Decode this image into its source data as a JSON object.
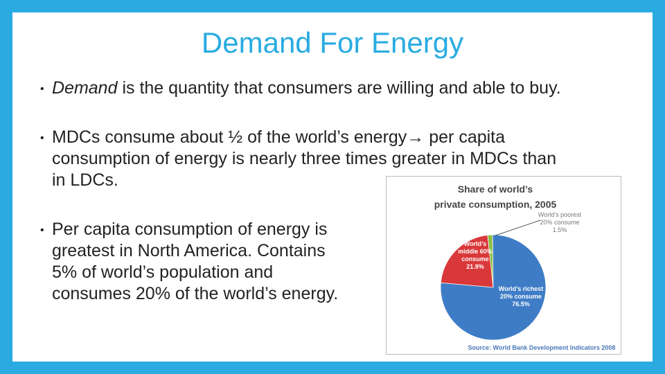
{
  "slide": {
    "title": "Demand For Energy",
    "bullets": [
      {
        "lines": [
          [
            "Demand",
            " is the quantity that consumers are willing and able to buy."
          ]
        ]
      },
      {
        "lines": [
          [
            "MDCs consume about ½ of the world’s energy→ per capita"
          ],
          [
            "consumption of energy is nearly three times greater in MDCs than"
          ],
          [
            "in LDCs."
          ]
        ]
      },
      {
        "lines": [
          [
            "Per capita consumption of energy is"
          ],
          [
            "greatest in North America. Contains"
          ],
          [
            "5% of world’s population and"
          ],
          [
            "consumes 20% of the world’s energy."
          ]
        ]
      }
    ]
  },
  "chart_data": {
    "type": "pie",
    "title": [
      "Share of world’s",
      "private consumption, 2005"
    ],
    "categories": [
      [
        "World’s",
        "middle 60%",
        "consume"
      ],
      [
        "World’s poorest",
        "20% consume"
      ],
      [
        "World’s richest",
        "20% consume"
      ]
    ],
    "values": [
      21.9,
      1.5,
      76.5
    ],
    "value_labels": [
      "21.9%",
      "1.5%",
      "76.5%"
    ],
    "colors": [
      "#d9383a",
      "#8cbf3f",
      "#3f7cc6"
    ],
    "source": "Source: World Bank Development Indicators 2008"
  }
}
